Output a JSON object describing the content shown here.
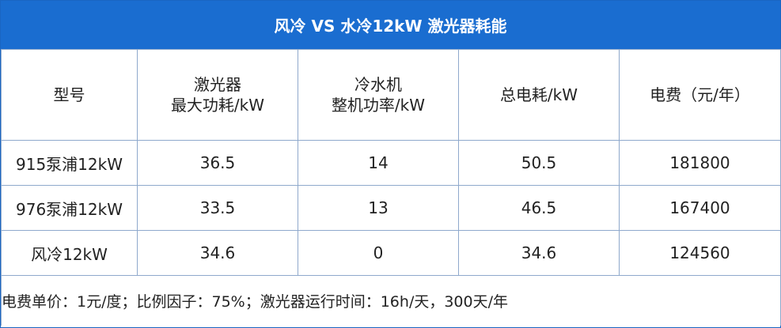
{
  "title": "风冷 VS 水冷12kW 激光器耗能",
  "table": {
    "header": [
      [
        "型号"
      ],
      [
        "激光器",
        "最大功耗/kW"
      ],
      [
        "冷水机",
        "整机功率/kW"
      ],
      [
        "总电耗/kW"
      ],
      [
        "电费（元/年）"
      ]
    ],
    "rows": [
      [
        "915泵浦12kW",
        "36.5",
        "14",
        "50.5",
        "181800"
      ],
      [
        "976泵浦12kW",
        "33.5",
        "13",
        "46.5",
        "167400"
      ],
      [
        "风冷12kW",
        "34.6",
        "0",
        "34.6",
        "124560"
      ]
    ]
  },
  "note": "电费单价：1元/度；比例因子：75%；激光器运行时间：16h/天，300天/年"
}
